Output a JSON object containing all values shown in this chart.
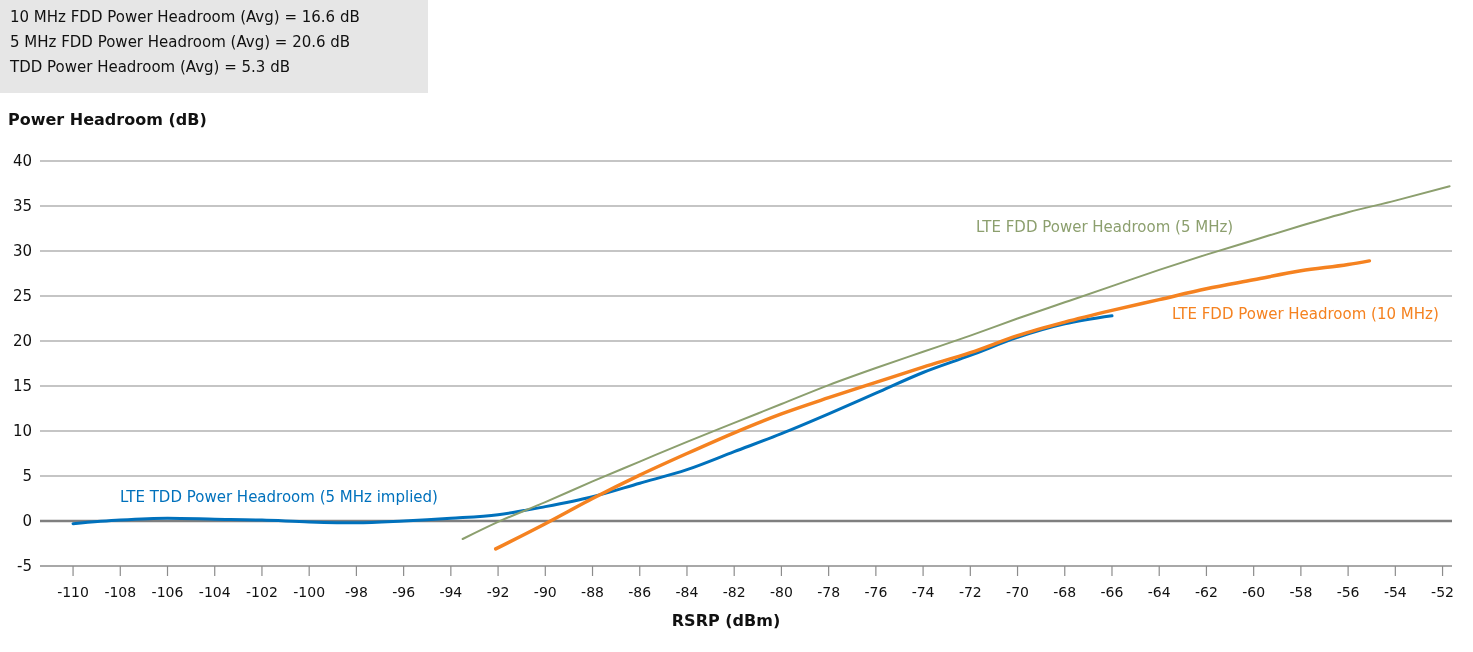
{
  "chart_data": {
    "type": "line",
    "xlabel": "RSRP (dBm)",
    "ylabel": "Power Headroom (dB)",
    "annotations": [
      "10 MHz FDD Power Headroom (Avg) = 16.6 dB",
      "5 MHz FDD Power Headroom (Avg) = 20.6 dB",
      "TDD Power Headroom (Avg) = 5.3 dB"
    ],
    "xlim": [
      -111.4,
      -51.6
    ],
    "xticks": [
      -110,
      -108,
      -106,
      -104,
      -102,
      -100,
      -98,
      -96,
      -94,
      -92,
      -90,
      -88,
      -86,
      -84,
      -82,
      -80,
      -78,
      -76,
      -74,
      -72,
      -70,
      -68,
      -66,
      -64,
      -62,
      -60,
      -58,
      -56,
      -54,
      -52
    ],
    "ylim": [
      -5,
      40
    ],
    "yticks": [
      -5,
      0,
      5,
      10,
      15,
      20,
      25,
      30,
      35,
      40
    ],
    "grid": "y",
    "marker": "none",
    "line_style": "solid",
    "ref_lines": [
      {
        "axis": "y",
        "value": 0,
        "color": "#7f7f7f"
      }
    ],
    "series": [
      {
        "name": "LTE TDD Power Headroom (5 MHz implied)",
        "color": "#0071bc",
        "x": [
          -110,
          -108,
          -106,
          -104,
          -102,
          -100,
          -98,
          -96,
          -94,
          -92,
          -90,
          -88,
          -86,
          -84,
          -82,
          -80,
          -78,
          -76,
          -74,
          -72,
          -70,
          -68,
          -66
        ],
        "values": [
          -0.3,
          0.1,
          0.3,
          0.2,
          0.1,
          -0.1,
          -0.2,
          0,
          0.3,
          0.7,
          1.6,
          2.7,
          4.2,
          5.7,
          7.7,
          9.7,
          11.9,
          14.2,
          16.5,
          18.4,
          20.4,
          21.9,
          22.8
        ]
      },
      {
        "name": "LTE FDD Power Headroom (5 MHz)",
        "color": "#8c9f6e",
        "x": [
          -93.5,
          -92,
          -90,
          -88,
          -86,
          -84,
          -82,
          -80,
          -78,
          -76,
          -74,
          -72,
          -70,
          -68,
          -66,
          -64,
          -62,
          -60,
          -58,
          -56,
          -54,
          -51.7
        ],
        "values": [
          -2,
          -0.1,
          2.1,
          4.4,
          6.6,
          8.8,
          10.9,
          13,
          15.1,
          17,
          18.8,
          20.6,
          22.5,
          24.3,
          26.1,
          27.9,
          29.6,
          31.2,
          32.8,
          34.3,
          35.6,
          37.2
        ]
      },
      {
        "name": "LTE FDD Power Headroom (10 MHz)",
        "color": "#f58220",
        "x": [
          -92.1,
          -90,
          -88,
          -86,
          -84,
          -82,
          -80,
          -78,
          -76,
          -74,
          -72,
          -70,
          -68,
          -66,
          -64,
          -62,
          -60,
          -58,
          -56,
          -55.1
        ],
        "values": [
          -3.1,
          -0.3,
          2.5,
          5.1,
          7.5,
          9.8,
          11.9,
          13.7,
          15.4,
          17.1,
          18.7,
          20.6,
          22.1,
          23.4,
          24.6,
          25.8,
          26.8,
          27.8,
          28.5,
          28.9
        ]
      }
    ]
  }
}
